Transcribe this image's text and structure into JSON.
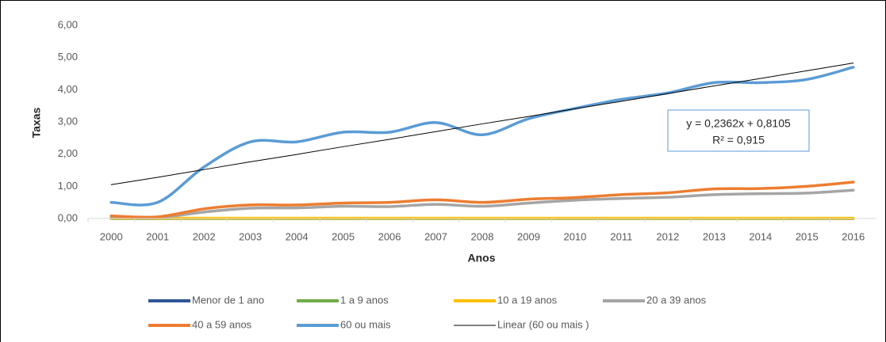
{
  "chart_data": {
    "type": "line",
    "x_label": "Anos",
    "y_label": "Taxas",
    "categories": [
      "2000",
      "2001",
      "2002",
      "2003",
      "2004",
      "2005",
      "2006",
      "2007",
      "2008",
      "2009",
      "2010",
      "2011",
      "2012",
      "2013",
      "2014",
      "2015",
      "2016"
    ],
    "ylim": [
      0,
      6
    ],
    "yticks": [
      {
        "value": 0,
        "label": "0,00"
      },
      {
        "value": 1,
        "label": "1,00"
      },
      {
        "value": 2,
        "label": "2,00"
      },
      {
        "value": 3,
        "label": "3,00"
      },
      {
        "value": 4,
        "label": "4,00"
      },
      {
        "value": 5,
        "label": "5,00"
      },
      {
        "value": 6,
        "label": "6,00"
      }
    ],
    "grid": false,
    "legend": "bottom",
    "annotations": [
      "y = 0,2362x + 0,8105",
      "R² = 0,915"
    ],
    "series": [
      {
        "name": "Menor de 1 ano",
        "color": "#2f5597",
        "values": [
          0,
          0,
          0,
          0,
          0,
          0,
          0,
          0,
          0,
          0,
          0,
          0,
          0,
          0,
          0,
          0,
          0
        ]
      },
      {
        "name": "1 a 9 anos",
        "color": "#70ad47",
        "values": [
          0,
          0,
          0,
          0,
          0,
          0,
          0,
          0,
          0,
          0,
          0,
          0,
          0,
          0,
          0,
          0,
          0
        ]
      },
      {
        "name": "10 a 19 anos",
        "color": "#ffc000",
        "values": [
          0.01,
          0.01,
          0.01,
          0.01,
          0.01,
          0.01,
          0.01,
          0.01,
          0.01,
          0.01,
          0.01,
          0.01,
          0.01,
          0.01,
          0.01,
          0.01,
          0.01
        ]
      },
      {
        "name": "20 a 39 anos",
        "color": "#a5a5a5",
        "values": [
          0.05,
          0.03,
          0.2,
          0.32,
          0.33,
          0.38,
          0.37,
          0.44,
          0.38,
          0.48,
          0.57,
          0.62,
          0.66,
          0.74,
          0.77,
          0.79,
          0.88
        ]
      },
      {
        "name": "40 a 59 anos",
        "color": "#ed7d31",
        "values": [
          0.08,
          0.05,
          0.3,
          0.42,
          0.42,
          0.48,
          0.5,
          0.58,
          0.5,
          0.6,
          0.65,
          0.74,
          0.8,
          0.92,
          0.93,
          1.0,
          1.13
        ]
      },
      {
        "name": "60 ou mais",
        "color": "#5b9bd5",
        "values": [
          0.5,
          0.5,
          1.6,
          2.38,
          2.38,
          2.68,
          2.68,
          2.98,
          2.6,
          3.1,
          3.42,
          3.7,
          3.9,
          4.22,
          4.22,
          4.32,
          4.7
        ]
      },
      {
        "name": "Linear (60 ou mais )",
        "color": "#000000",
        "trendline": true,
        "values": [
          1.05,
          1.28,
          1.52,
          1.76,
          1.99,
          2.23,
          2.46,
          2.7,
          2.94,
          3.17,
          3.41,
          3.64,
          3.88,
          4.12,
          4.35,
          4.59,
          4.83
        ]
      }
    ]
  }
}
